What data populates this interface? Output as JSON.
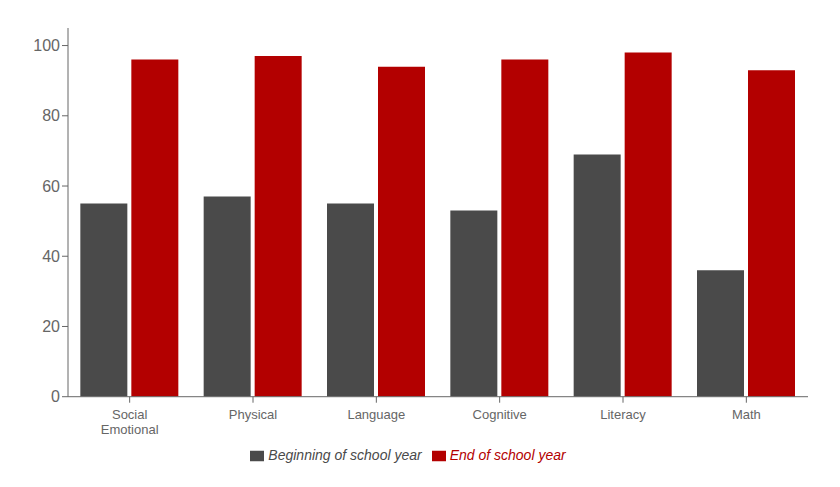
{
  "chart_data": {
    "type": "bar",
    "categories": [
      "Social\nEmotional",
      "Physical",
      "Language",
      "Cognitive",
      "Literacy",
      "Math"
    ],
    "series": [
      {
        "name": "Beginning of school year",
        "color": "#4a4a4a",
        "values": [
          55,
          57,
          55,
          53,
          69,
          36
        ]
      },
      {
        "name": "End of school year",
        "color": "#b30000",
        "values": [
          96,
          97,
          94,
          96,
          98,
          93
        ]
      }
    ],
    "ylim": [
      0,
      105
    ],
    "yticks": [
      0,
      20,
      40,
      60,
      80,
      100
    ],
    "grid": false,
    "legend": "bottom"
  }
}
